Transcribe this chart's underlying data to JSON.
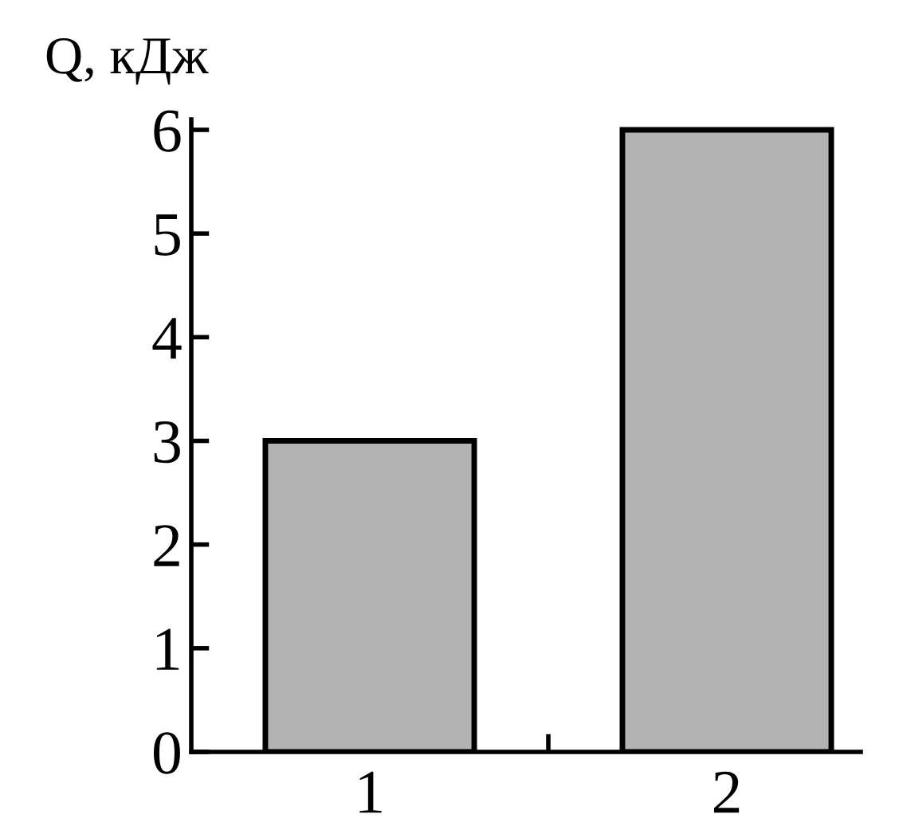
{
  "chart_data": {
    "type": "bar",
    "ylabel": "Q, кДж",
    "categories": [
      "1",
      "2"
    ],
    "values": [
      3,
      6
    ],
    "color": "#b3b3b3",
    "ylim": [
      0,
      6.1
    ],
    "yticks": [
      0,
      1,
      2,
      3,
      4,
      5,
      6
    ],
    "grid": false,
    "legend": false
  }
}
